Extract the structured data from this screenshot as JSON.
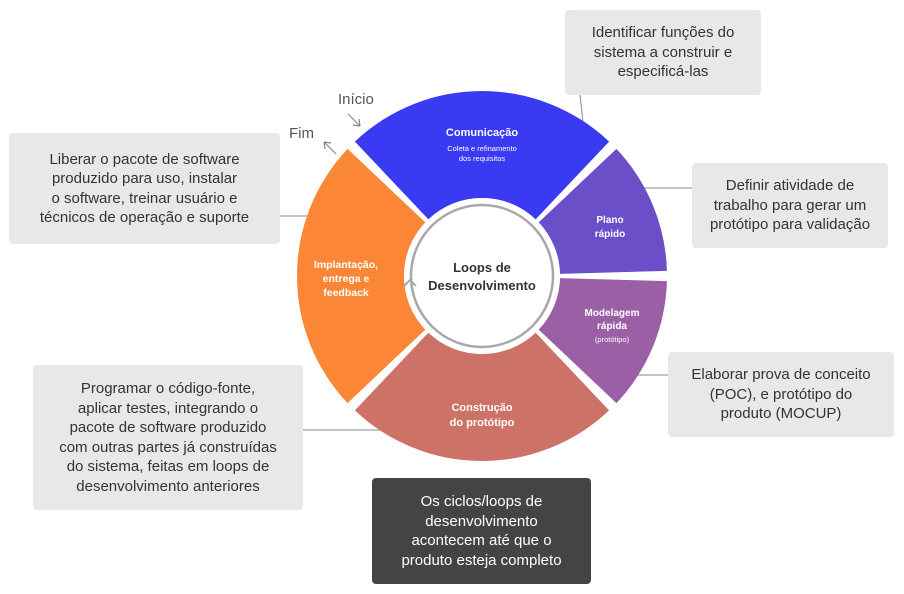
{
  "center": {
    "title_line1": "Loops de",
    "title_line2": "Desenvolvimento"
  },
  "labels": {
    "start": "Início",
    "end": "Fim"
  },
  "colors": {
    "comunicacao": "#3a3af2",
    "plano": "#6a4fc8",
    "modelagem": "#9b5fa6",
    "construcao": "#cc7266",
    "implantacao": "#fb8736",
    "note_bg": "#e8e8e8",
    "note_dark_bg": "#444444"
  },
  "segments": {
    "comunicacao": {
      "title": "Comunicação",
      "sub1": "Coleta e refinamento",
      "sub2": "dos requisitos"
    },
    "plano": {
      "line1": "Plano",
      "line2": "rápido"
    },
    "modelagem": {
      "line1": "Modelagem",
      "line2": "rápida",
      "sub": "(protótipo)"
    },
    "construcao": {
      "line1": "Construção",
      "line2": "do protótipo"
    },
    "implantacao": {
      "line1": "Implantação,",
      "line2": "entrega e",
      "line3": "feedback"
    }
  },
  "notes": {
    "comunicacao": "Identificar funções do\nsistema a construir e\nespecificá-las",
    "plano": "Definir atividade de\ntrabalho para gerar um\nprotótipo para validação",
    "modelagem": "Elaborar prova de conceito\n(POC), e protótipo do\nproduto (MOCUP)",
    "construcao": "Programar o código-fonte,\naplicar testes, integrando o\npacote de software produzido\ncom outras partes já construídas\ndo sistema, feitas em loops de\ndesenvolvimento anteriores",
    "implantacao": "Liberar o pacote de software\nproduzido para uso, instalar\no software, treinar usuário e\ntécnicos de operação e suporte",
    "summary": "Os ciclos/loops de\ndesenvolvimento\nacontecem até que o\nproduto esteja completo"
  }
}
